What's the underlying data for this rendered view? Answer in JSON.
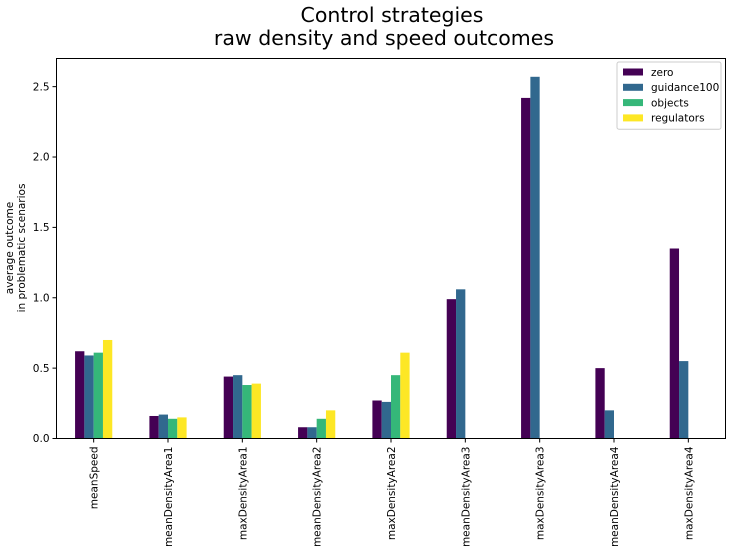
{
  "chart_data": {
    "type": "bar",
    "title": [
      "Control strategies",
      "raw density and speed outcomes"
    ],
    "xlabel": "",
    "ylabel": [
      "average outcome",
      "in problematic scenarios"
    ],
    "ylim": [
      0,
      2.7
    ],
    "yticks": [
      0.0,
      0.5,
      1.0,
      1.5,
      2.0,
      2.5
    ],
    "ytick_labels": [
      "0.0",
      "0.5",
      "1.0",
      "1.5",
      "2.0",
      "2.5"
    ],
    "grid": false,
    "legend_position": "top-right",
    "categories": [
      "meanSpeed",
      "meanDensityArea1",
      "maxDensityArea1",
      "meanDensityArea2",
      "maxDensityArea2",
      "meanDensityArea3",
      "maxDensityArea3",
      "meanDensityArea4",
      "maxDensityArea4"
    ],
    "series": [
      {
        "name": "zero",
        "color": "#440154",
        "values": [
          0.62,
          0.16,
          0.44,
          0.08,
          0.27,
          0.99,
          2.42,
          0.5,
          1.35
        ]
      },
      {
        "name": "guidance100",
        "color": "#31688e",
        "values": [
          0.59,
          0.17,
          0.45,
          0.08,
          0.26,
          1.06,
          2.57,
          0.2,
          0.55
        ]
      },
      {
        "name": "objects",
        "color": "#35b779",
        "values": [
          0.61,
          0.14,
          0.38,
          0.14,
          0.45,
          null,
          null,
          null,
          null
        ]
      },
      {
        "name": "regulators",
        "color": "#fde725",
        "values": [
          0.7,
          0.15,
          0.39,
          0.2,
          0.61,
          null,
          null,
          null,
          null
        ]
      }
    ]
  }
}
